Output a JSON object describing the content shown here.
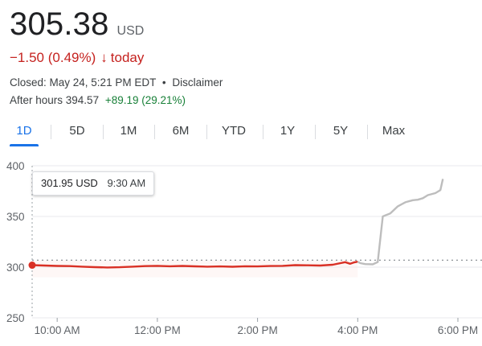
{
  "quote": {
    "price": "305.38",
    "currency": "USD",
    "change": "−1.50 (0.49%)",
    "change_suffix": "today",
    "closed_text": "Closed: May 24, 5:21 PM EDT",
    "separator": "•",
    "disclaimer": "Disclaimer",
    "after_hours_label": "After hours 394.57",
    "after_hours_change": "+89.19 (29.21%)"
  },
  "tabs": [
    {
      "label": "1D",
      "active": true
    },
    {
      "label": "5D",
      "active": false
    },
    {
      "label": "1M",
      "active": false
    },
    {
      "label": "6M",
      "active": false
    },
    {
      "label": "YTD",
      "active": false
    },
    {
      "label": "1Y",
      "active": false
    },
    {
      "label": "5Y",
      "active": false
    },
    {
      "label": "Max",
      "active": false
    }
  ],
  "tooltip": {
    "value": "301.95 USD",
    "time": "9:30 AM"
  },
  "colors": {
    "regular_session": "#d93025",
    "after_hours": "#bdbdbd",
    "accent": "#1a73e8",
    "negative": "#c5221f",
    "positive": "#188038"
  },
  "chart_data": {
    "type": "line",
    "y_ticks": [
      250,
      300,
      350,
      400
    ],
    "ylim": [
      250,
      400
    ],
    "x_ticks": [
      {
        "label": "10:00 AM",
        "t": 10.0
      },
      {
        "label": "12:00 PM",
        "t": 12.0
      },
      {
        "label": "2:00 PM",
        "t": 14.0
      },
      {
        "label": "4:00 PM",
        "t": 16.0
      },
      {
        "label": "6:00 PM",
        "t": 18.0
      }
    ],
    "xlim": [
      9.5,
      18.0
    ],
    "previous_close": 306.88,
    "series": [
      {
        "points": [
          [
            9.5,
            301.95
          ],
          [
            9.75,
            301.6
          ],
          [
            10.0,
            301.2
          ],
          [
            10.25,
            301.0
          ],
          [
            10.5,
            300.5
          ],
          [
            10.75,
            300.0
          ],
          [
            11.0,
            299.7
          ],
          [
            11.25,
            299.9
          ],
          [
            11.5,
            300.5
          ],
          [
            11.75,
            301.0
          ],
          [
            12.0,
            301.3
          ],
          [
            12.25,
            300.9
          ],
          [
            12.5,
            301.2
          ],
          [
            12.75,
            300.8
          ],
          [
            13.0,
            300.5
          ],
          [
            13.25,
            300.7
          ],
          [
            13.5,
            300.4
          ],
          [
            13.75,
            300.9
          ],
          [
            14.0,
            300.7
          ],
          [
            14.25,
            301.1
          ],
          [
            14.5,
            301.3
          ],
          [
            14.75,
            302.0
          ],
          [
            15.0,
            301.8
          ],
          [
            15.25,
            301.6
          ],
          [
            15.5,
            302.4
          ],
          [
            15.75,
            304.9
          ],
          [
            15.85,
            303.3
          ],
          [
            15.92,
            304.6
          ],
          [
            16.0,
            305.38
          ]
        ]
      },
      {
        "points": [
          [
            16.0,
            305.38
          ],
          [
            16.05,
            304.0
          ],
          [
            16.15,
            303.0
          ],
          [
            16.3,
            302.8
          ],
          [
            16.4,
            305.0
          ],
          [
            16.5,
            350.0
          ],
          [
            16.55,
            351.0
          ],
          [
            16.65,
            353.0
          ],
          [
            16.8,
            360.0
          ],
          [
            16.95,
            364.0
          ],
          [
            17.1,
            366.0
          ],
          [
            17.2,
            366.5
          ],
          [
            17.3,
            368.0
          ],
          [
            17.4,
            371.0
          ],
          [
            17.55,
            373.0
          ],
          [
            17.6,
            374.5
          ],
          [
            17.65,
            376.0
          ],
          [
            17.7,
            387.0
          ]
        ]
      }
    ]
  }
}
